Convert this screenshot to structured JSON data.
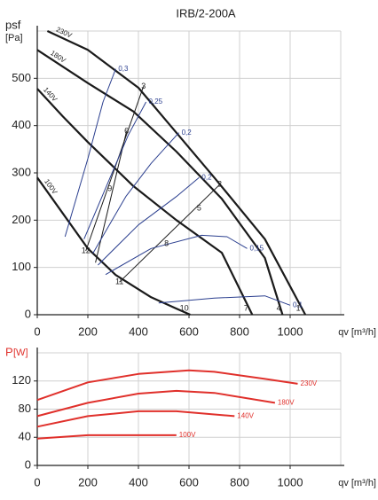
{
  "chart_data": [
    {
      "type": "line",
      "title": "IRB/2-200A",
      "y_label": "psf",
      "y_unit": "[Pa]",
      "x_label": "qv [m³/h]",
      "xlim": [
        0,
        1200
      ],
      "ylim": [
        0,
        600
      ],
      "xticks": [
        0,
        200,
        400,
        600,
        800,
        1000
      ],
      "yticks": [
        0,
        100,
        200,
        300,
        400,
        500
      ],
      "grid": true,
      "series": [
        {
          "name": "230V",
          "color": "#1a1a1a",
          "width": 2.2,
          "x": [
            40,
            200,
            400,
            550,
            700,
            900,
            1060
          ],
          "values": [
            600,
            560,
            480,
            385,
            290,
            160,
            0
          ]
        },
        {
          "name": "180V",
          "color": "#1a1a1a",
          "width": 2.2,
          "x": [
            0,
            200,
            380,
            550,
            730,
            900,
            970
          ],
          "values": [
            560,
            490,
            430,
            345,
            245,
            120,
            0
          ]
        },
        {
          "name": "140V",
          "color": "#1a1a1a",
          "width": 2.2,
          "x": [
            0,
            100,
            200,
            380,
            550,
            730,
            850
          ],
          "values": [
            478,
            420,
            365,
            272,
            200,
            131,
            0
          ]
        },
        {
          "name": "100V",
          "color": "#1a1a1a",
          "width": 2.2,
          "x": [
            0,
            100,
            200,
            310,
            450,
            550,
            605
          ],
          "values": [
            290,
            215,
            140,
            84,
            37,
            13,
            0
          ]
        },
        {
          "name": "0,3",
          "color": "#2b3f8f",
          "width": 1,
          "x": [
            110,
            200,
            260,
            310
          ],
          "values": [
            165,
            330,
            450,
            520
          ]
        },
        {
          "name": "0,25",
          "color": "#2b3f8f",
          "width": 1,
          "x": [
            185,
            280,
            360,
            430
          ],
          "values": [
            160,
            280,
            380,
            450
          ]
        },
        {
          "name": "0,2",
          "color": "#2b3f8f",
          "width": 1,
          "x": [
            220,
            350,
            450,
            560
          ],
          "values": [
            130,
            250,
            320,
            385
          ]
        },
        {
          "name": "0,2",
          "color": "#2b3f8f",
          "width": 1,
          "x": [
            240,
            400,
            550,
            640
          ],
          "values": [
            105,
            190,
            250,
            290
          ]
        },
        {
          "name": "0,15",
          "color": "#2b3f8f",
          "width": 1,
          "x": [
            270,
            450,
            650,
            750,
            830
          ],
          "values": [
            85,
            140,
            168,
            165,
            140
          ]
        },
        {
          "name": "0,1",
          "color": "#2b3f8f",
          "width": 1,
          "x": [
            480,
            700,
            900,
            1000
          ],
          "values": [
            25,
            35,
            40,
            20
          ]
        }
      ],
      "lines": [
        {
          "color": "#1a1a1a",
          "x": [
            192,
            420
          ],
          "values": [
            135,
            483
          ]
        },
        {
          "color": "#1a1a1a",
          "x": [
            230,
            353
          ],
          "values": [
            110,
            388
          ]
        },
        {
          "color": "#1a1a1a",
          "x": [
            325,
            721
          ],
          "values": [
            69,
            275
          ]
        }
      ],
      "annotations": [
        {
          "text": "1",
          "x": 1032,
          "y": 13
        },
        {
          "text": "2",
          "x": 721,
          "y": 275
        },
        {
          "text": "3",
          "x": 420,
          "y": 483
        },
        {
          "text": "4",
          "x": 955,
          "y": 13
        },
        {
          "text": "5",
          "x": 640,
          "y": 225
        },
        {
          "text": "6",
          "x": 353,
          "y": 388
        },
        {
          "text": "7",
          "x": 826,
          "y": 13
        },
        {
          "text": "8",
          "x": 511,
          "y": 150
        },
        {
          "text": "9",
          "x": 287,
          "y": 266
        },
        {
          "text": "10",
          "x": 581,
          "y": 13
        },
        {
          "text": "11",
          "x": 325,
          "y": 69
        },
        {
          "text": "12",
          "x": 192,
          "y": 135
        }
      ]
    },
    {
      "type": "line",
      "y_label": "P",
      "y_unit": "[W]",
      "x_label": "qv [m³/h]",
      "xlim": [
        0,
        1200
      ],
      "ylim": [
        0,
        160
      ],
      "xticks": [
        0,
        200,
        400,
        600,
        800,
        1000
      ],
      "yticks": [
        0,
        40,
        80,
        120
      ],
      "grid": true,
      "series": [
        {
          "name": "230V",
          "color": "#e0302b",
          "width": 2,
          "x": [
            0,
            200,
            400,
            600,
            700,
            900,
            1030
          ],
          "values": [
            93,
            118,
            130,
            135,
            133,
            123,
            116
          ]
        },
        {
          "name": "180V",
          "color": "#e0302b",
          "width": 2,
          "x": [
            0,
            200,
            400,
            550,
            700,
            940
          ],
          "values": [
            70,
            89,
            102,
            106,
            103,
            89
          ]
        },
        {
          "name": "140V",
          "color": "#e0302b",
          "width": 2,
          "x": [
            0,
            200,
            400,
            550,
            780
          ],
          "values": [
            55,
            70,
            77,
            77,
            70
          ]
        },
        {
          "name": "100V",
          "color": "#e0302b",
          "width": 2,
          "x": [
            0,
            200,
            550
          ],
          "values": [
            38,
            43,
            43
          ]
        }
      ]
    }
  ]
}
